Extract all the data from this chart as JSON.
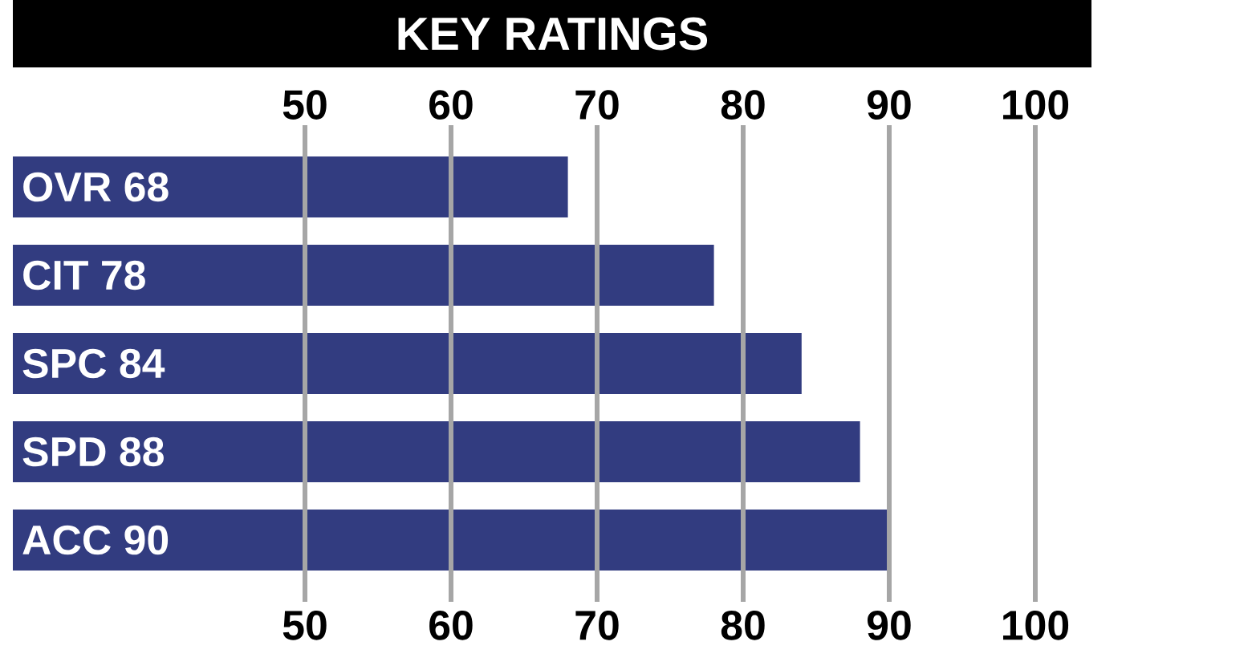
{
  "chart_data": {
    "type": "bar",
    "orientation": "horizontal",
    "title": "KEY RATINGS",
    "categories": [
      "OVR 68",
      "CIT 78",
      "SPC 84",
      "SPD 88",
      "ACC 90"
    ],
    "values": [
      68,
      78,
      84,
      88,
      90
    ],
    "color": "#323c80",
    "xlim": [
      30,
      100
    ],
    "xticks": [
      50,
      60,
      70,
      80,
      90,
      100
    ],
    "x2lim": [
      30,
      100
    ],
    "x2ticks": [
      50,
      60,
      70,
      80,
      90,
      100
    ],
    "grid": "x"
  }
}
